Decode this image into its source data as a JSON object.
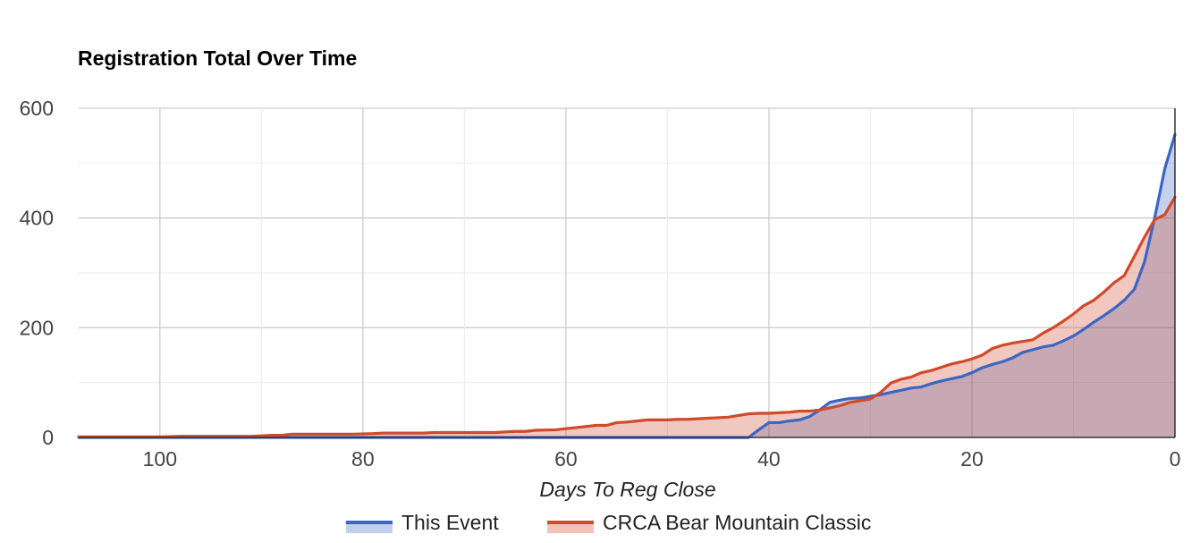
{
  "chart_data": {
    "type": "area",
    "title": "Registration Total Over Time",
    "xlabel": "Days To Reg Close",
    "ylabel": "",
    "xlim": [
      108,
      0
    ],
    "ylim": [
      0,
      600
    ],
    "x_reversed": true,
    "x_ticks": [
      100,
      80,
      60,
      40,
      20,
      0
    ],
    "y_ticks": [
      0,
      200,
      400,
      600
    ],
    "grid": true,
    "legend_position": "bottom",
    "series": [
      {
        "name": "This Event",
        "color": "#3c66c4",
        "fill_color": "#c1d0ee",
        "points": [
          [
            108,
            0
          ],
          [
            100,
            0
          ],
          [
            90,
            0
          ],
          [
            80,
            0
          ],
          [
            70,
            0
          ],
          [
            60,
            0
          ],
          [
            50,
            0
          ],
          [
            43,
            0
          ],
          [
            42,
            0
          ],
          [
            41,
            14
          ],
          [
            40,
            27
          ],
          [
            39,
            27
          ],
          [
            38,
            30
          ],
          [
            37,
            32
          ],
          [
            36,
            38
          ],
          [
            35,
            50
          ],
          [
            34,
            64
          ],
          [
            33,
            68
          ],
          [
            32,
            71
          ],
          [
            31,
            72
          ],
          [
            30,
            75
          ],
          [
            29,
            78
          ],
          [
            28,
            82
          ],
          [
            27,
            86
          ],
          [
            26,
            90
          ],
          [
            25,
            92
          ],
          [
            24,
            98
          ],
          [
            23,
            103
          ],
          [
            22,
            107
          ],
          [
            21,
            111
          ],
          [
            20,
            118
          ],
          [
            19,
            127
          ],
          [
            18,
            133
          ],
          [
            17,
            138
          ],
          [
            16,
            145
          ],
          [
            15,
            155
          ],
          [
            14,
            160
          ],
          [
            13,
            165
          ],
          [
            12,
            168
          ],
          [
            11,
            176
          ],
          [
            10,
            185
          ],
          [
            9,
            197
          ],
          [
            8,
            210
          ],
          [
            7,
            222
          ],
          [
            6,
            235
          ],
          [
            5,
            250
          ],
          [
            4,
            270
          ],
          [
            3,
            320
          ],
          [
            2,
            400
          ],
          [
            1,
            490
          ],
          [
            0,
            552
          ]
        ]
      },
      {
        "name": "CRCA Bear Mountain Classic",
        "color": "#d04a2b",
        "fill_color": "#f1c3ba",
        "points": [
          [
            108,
            1
          ],
          [
            105,
            1
          ],
          [
            100,
            1
          ],
          [
            98,
            2
          ],
          [
            95,
            2
          ],
          [
            93,
            2
          ],
          [
            91,
            2
          ],
          [
            89,
            4
          ],
          [
            88,
            4
          ],
          [
            87,
            6
          ],
          [
            85,
            6
          ],
          [
            83,
            6
          ],
          [
            81,
            6
          ],
          [
            79,
            7
          ],
          [
            78,
            8
          ],
          [
            76,
            8
          ],
          [
            74,
            8
          ],
          [
            73,
            9
          ],
          [
            71,
            9
          ],
          [
            69,
            9
          ],
          [
            67,
            9
          ],
          [
            65,
            11
          ],
          [
            64,
            11
          ],
          [
            63,
            13
          ],
          [
            61,
            14
          ],
          [
            60,
            16
          ],
          [
            59,
            18
          ],
          [
            58,
            20
          ],
          [
            57,
            22
          ],
          [
            56,
            22
          ],
          [
            55,
            27
          ],
          [
            54,
            28
          ],
          [
            53,
            30
          ],
          [
            52,
            32
          ],
          [
            51,
            32
          ],
          [
            50,
            32
          ],
          [
            49,
            33
          ],
          [
            48,
            33
          ],
          [
            47,
            34
          ],
          [
            46,
            35
          ],
          [
            45,
            36
          ],
          [
            44,
            37
          ],
          [
            43,
            40
          ],
          [
            42,
            43
          ],
          [
            41,
            44
          ],
          [
            40,
            44
          ],
          [
            39,
            45
          ],
          [
            38,
            46
          ],
          [
            37,
            48
          ],
          [
            36,
            48
          ],
          [
            35,
            50
          ],
          [
            34,
            54
          ],
          [
            33,
            58
          ],
          [
            32,
            64
          ],
          [
            31,
            67
          ],
          [
            30,
            70
          ],
          [
            29,
            82
          ],
          [
            28,
            99
          ],
          [
            27,
            106
          ],
          [
            26,
            110
          ],
          [
            25,
            118
          ],
          [
            24,
            122
          ],
          [
            23,
            128
          ],
          [
            22,
            134
          ],
          [
            21,
            138
          ],
          [
            20,
            143
          ],
          [
            19,
            150
          ],
          [
            18,
            162
          ],
          [
            17,
            168
          ],
          [
            16,
            172
          ],
          [
            15,
            175
          ],
          [
            14,
            178
          ],
          [
            13,
            190
          ],
          [
            12,
            200
          ],
          [
            11,
            212
          ],
          [
            10,
            225
          ],
          [
            9,
            240
          ],
          [
            8,
            250
          ],
          [
            7,
            265
          ],
          [
            6,
            282
          ],
          [
            5,
            295
          ],
          [
            4,
            330
          ],
          [
            3,
            365
          ],
          [
            2,
            397
          ],
          [
            1,
            406
          ],
          [
            0,
            438
          ]
        ]
      }
    ]
  }
}
